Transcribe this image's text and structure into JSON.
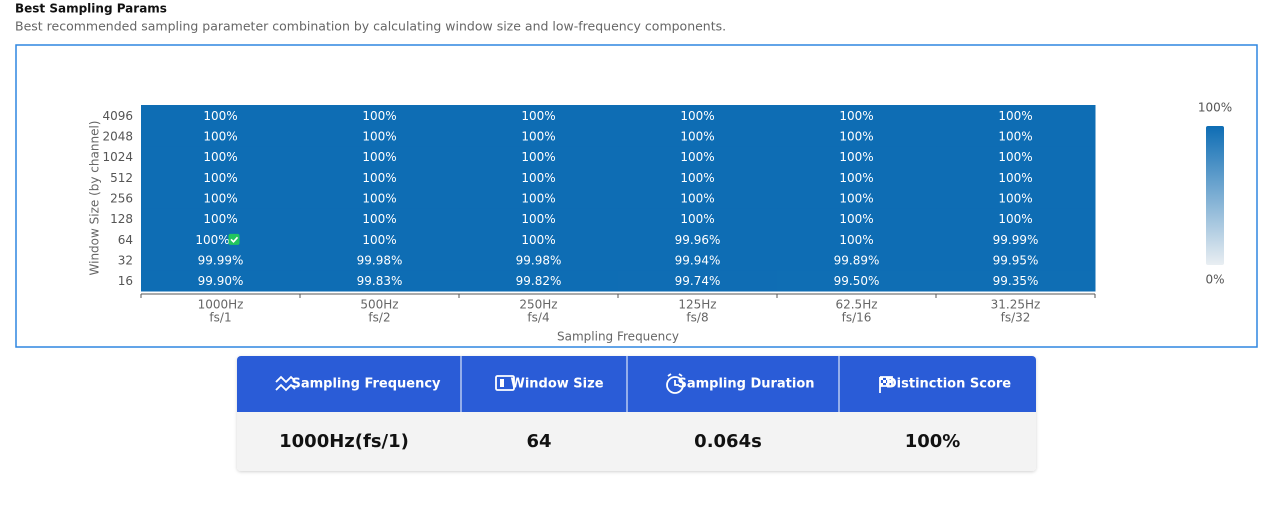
{
  "header": {
    "title": "Best Sampling Params",
    "subtitle": "Best recommended sampling parameter combination by calculating window size and low-frequency components."
  },
  "chart_data": {
    "type": "heatmap",
    "x_title": "Sampling Frequency",
    "y_title": "Window Size (by channel)",
    "x_categories": [
      "1000Hz",
      "500Hz",
      "250Hz",
      "125Hz",
      "62.5Hz",
      "31.25Hz"
    ],
    "x_subcategories": [
      "fs/1",
      "fs/2",
      "fs/4",
      "fs/8",
      "fs/16",
      "fs/32"
    ],
    "y_categories": [
      4096,
      2048,
      1024,
      512,
      256,
      128,
      64,
      32,
      16
    ],
    "values": [
      [
        100,
        100,
        100,
        100,
        100,
        100
      ],
      [
        100,
        100,
        100,
        100,
        100,
        100
      ],
      [
        100,
        100,
        100,
        100,
        100,
        100
      ],
      [
        100,
        100,
        100,
        100,
        100,
        100
      ],
      [
        100,
        100,
        100,
        100,
        100,
        100
      ],
      [
        100,
        100,
        100,
        100,
        100,
        100
      ],
      [
        100,
        100,
        100,
        99.96,
        100,
        99.99
      ],
      [
        99.99,
        99.98,
        99.98,
        99.94,
        99.89,
        99.95
      ],
      [
        99.9,
        99.83,
        99.82,
        99.74,
        99.5,
        99.35
      ]
    ],
    "value_labels": [
      [
        "100%",
        "100%",
        "100%",
        "100%",
        "100%",
        "100%"
      ],
      [
        "100%",
        "100%",
        "100%",
        "100%",
        "100%",
        "100%"
      ],
      [
        "100%",
        "100%",
        "100%",
        "100%",
        "100%",
        "100%"
      ],
      [
        "100%",
        "100%",
        "100%",
        "100%",
        "100%",
        "100%"
      ],
      [
        "100%",
        "100%",
        "100%",
        "100%",
        "100%",
        "100%"
      ],
      [
        "100%",
        "100%",
        "100%",
        "100%",
        "100%",
        "100%"
      ],
      [
        "100%",
        "100%",
        "100%",
        "99.96%",
        "100%",
        "99.99%"
      ],
      [
        "99.99%",
        "99.98%",
        "99.98%",
        "99.94%",
        "99.89%",
        "99.95%"
      ],
      [
        "99.90%",
        "99.83%",
        "99.82%",
        "99.74%",
        "99.50%",
        "99.35%"
      ]
    ],
    "best_cell": [
      6,
      0
    ],
    "colors": [
      "#e9eef2",
      "#0e6db4"
    ],
    "clim": [
      0,
      100
    ],
    "cticks": [
      {
        "value": 0,
        "label": "0%"
      },
      {
        "value": 100,
        "label": "100%"
      }
    ]
  },
  "summary": {
    "headers": [
      "Sampling Frequency",
      "Window Size",
      "Sampling Duration",
      "Distinction Score"
    ],
    "values": [
      "1000Hz(fs/1)",
      "64",
      "0.064s",
      "100%"
    ]
  }
}
